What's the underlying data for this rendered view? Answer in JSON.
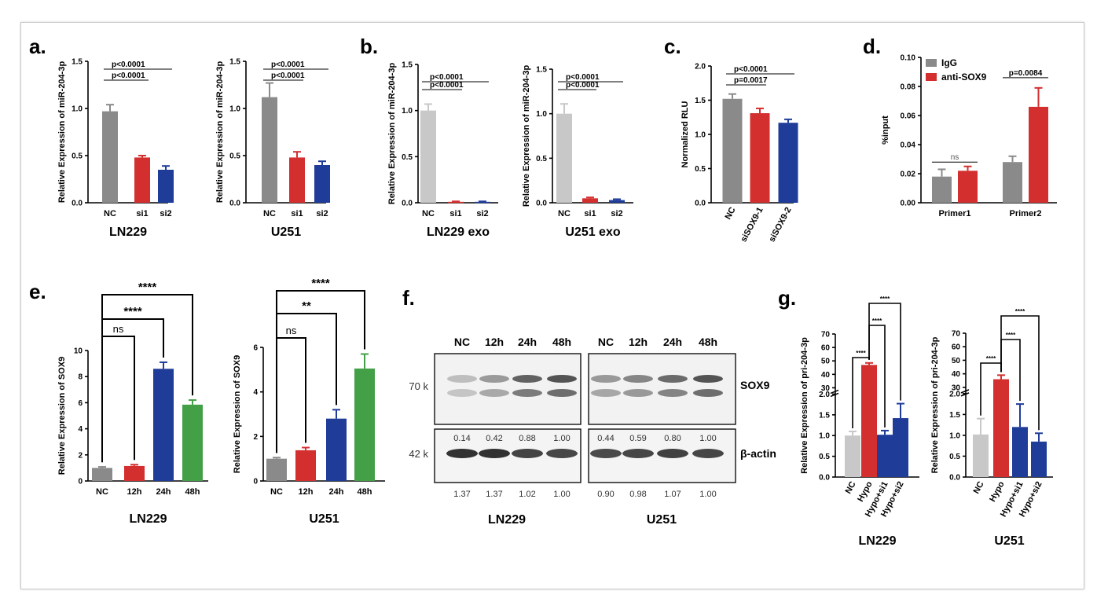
{
  "panel_labels": [
    "a.",
    "b.",
    "c.",
    "d.",
    "e.",
    "f.",
    "g."
  ],
  "colors": {
    "gray": "#8a8a8a",
    "lightgray": "#c8c8c8",
    "red": "#d32f2f",
    "blue": "#1f3c99",
    "green": "#43a047"
  },
  "chart_data": [
    {
      "id": "a1",
      "type": "bar",
      "title": "LN229",
      "ylabel": "Relative Expression of miR-204-3p",
      "ylim": [
        0,
        1.5
      ],
      "yticks": [
        0,
        0.5,
        1.0,
        1.5
      ],
      "categories": [
        "NC",
        "si1",
        "si2"
      ],
      "values": [
        0.97,
        0.48,
        0.35
      ],
      "errors": [
        0.07,
        0.02,
        0.04
      ],
      "colors": [
        "#8a8a8a",
        "#d32f2f",
        "#1f3c99"
      ],
      "sig": [
        {
          "a": 0,
          "b": 1,
          "label": "p<0.0001"
        },
        {
          "a": 0,
          "b": 2,
          "label": "p<0.0001"
        }
      ]
    },
    {
      "id": "a2",
      "type": "bar",
      "title": "U251",
      "ylabel": "Relative Expression of miR-204-3p",
      "ylim": [
        0,
        1.5
      ],
      "yticks": [
        0,
        0.5,
        1.0,
        1.5
      ],
      "categories": [
        "NC",
        "si1",
        "si2"
      ],
      "values": [
        1.12,
        0.48,
        0.4
      ],
      "errors": [
        0.15,
        0.06,
        0.04
      ],
      "colors": [
        "#8a8a8a",
        "#d32f2f",
        "#1f3c99"
      ],
      "sig": [
        {
          "a": 0,
          "b": 1,
          "label": "p<0.0001"
        },
        {
          "a": 0,
          "b": 2,
          "label": "p<0.0001"
        }
      ]
    },
    {
      "id": "b1",
      "type": "bar",
      "title": "LN229 exo",
      "ylabel": "Relative Expression of miR-204-3p",
      "ylim": [
        0,
        1.5
      ],
      "yticks": [
        0,
        0.5,
        1.0,
        1.5
      ],
      "categories": [
        "NC",
        "si1",
        "si2"
      ],
      "values": [
        1.0,
        0.01,
        0.01
      ],
      "errors": [
        0.07,
        0.005,
        0.005
      ],
      "colors": [
        "#c8c8c8",
        "#d32f2f",
        "#1f3c99"
      ],
      "sig": [
        {
          "a": 0,
          "b": 1,
          "label": "p<0.0001"
        },
        {
          "a": 0,
          "b": 2,
          "label": "p<0.0001"
        }
      ]
    },
    {
      "id": "b2",
      "type": "bar",
      "title": "U251 exo",
      "ylabel": "Relative Expression of miR-204-3p",
      "ylim": [
        0,
        1.5
      ],
      "yticks": [
        0,
        0.5,
        1.0,
        1.5
      ],
      "categories": [
        "NC",
        "si1",
        "si2"
      ],
      "values": [
        1.0,
        0.05,
        0.03
      ],
      "errors": [
        0.11,
        0.01,
        0.01
      ],
      "colors": [
        "#c8c8c8",
        "#d32f2f",
        "#1f3c99"
      ],
      "sig": [
        {
          "a": 0,
          "b": 1,
          "label": "p<0.0001"
        },
        {
          "a": 0,
          "b": 2,
          "label": "p<0.0001"
        }
      ]
    },
    {
      "id": "c",
      "type": "bar",
      "title": "",
      "ylabel": "Normalized RLU",
      "ylim": [
        0,
        2.0
      ],
      "yticks": [
        0.0,
        0.5,
        1.0,
        1.5,
        2.0
      ],
      "categories": [
        "NC",
        "siSOX9-1",
        "siSOX9-2"
      ],
      "values": [
        1.52,
        1.31,
        1.17
      ],
      "errors": [
        0.07,
        0.07,
        0.05
      ],
      "colors": [
        "#8a8a8a",
        "#d32f2f",
        "#1f3c99"
      ],
      "sig": [
        {
          "a": 0,
          "b": 1,
          "label": "p=0.0017"
        },
        {
          "a": 0,
          "b": 2,
          "label": "p<0.0001"
        }
      ]
    },
    {
      "id": "d",
      "type": "bar",
      "title": "",
      "ylabel": "%input",
      "ylim": [
        0,
        0.1
      ],
      "yticks": [
        0.0,
        0.02,
        0.04,
        0.06,
        0.08,
        0.1
      ],
      "categories": [
        "Primer1",
        "Primer2"
      ],
      "series": [
        {
          "name": "IgG",
          "values": [
            0.018,
            0.028
          ],
          "errors": [
            0.005,
            0.004
          ],
          "color": "#8a8a8a"
        },
        {
          "name": "anti-SOX9",
          "values": [
            0.022,
            0.066
          ],
          "errors": [
            0.003,
            0.013
          ],
          "color": "#d32f2f"
        }
      ],
      "sig": [
        {
          "group": 0,
          "label": "ns"
        },
        {
          "group": 1,
          "label": "p=0.0084"
        }
      ]
    },
    {
      "id": "e1",
      "type": "bar",
      "title": "LN229",
      "ylabel": "Relative Expression of SOX9",
      "ylim": [
        0,
        10
      ],
      "yticks": [
        0,
        2,
        4,
        6,
        8,
        10
      ],
      "categories": [
        "NC",
        "12h",
        "24h",
        "48h"
      ],
      "values": [
        1.0,
        1.15,
        8.6,
        5.85
      ],
      "errors": [
        0.08,
        0.1,
        0.5,
        0.35
      ],
      "colors": [
        "#8a8a8a",
        "#d32f2f",
        "#1f3c99",
        "#43a047"
      ],
      "sig": [
        {
          "a": 0,
          "b": 1,
          "label": "ns"
        },
        {
          "a": 0,
          "b": 2,
          "label": "****"
        },
        {
          "a": 0,
          "b": 3,
          "label": "****"
        }
      ]
    },
    {
      "id": "e2",
      "type": "bar",
      "title": "U251",
      "ylabel": "Relative Expression of SOX9",
      "ylim": [
        0,
        6
      ],
      "yticks": [
        0,
        2,
        4,
        6
      ],
      "categories": [
        "NC",
        "12h",
        "24h",
        "48h"
      ],
      "values": [
        1.0,
        1.38,
        2.8,
        5.05
      ],
      "errors": [
        0.05,
        0.12,
        0.4,
        0.65
      ],
      "colors": [
        "#8a8a8a",
        "#d32f2f",
        "#1f3c99",
        "#43a047"
      ],
      "sig": [
        {
          "a": 0,
          "b": 1,
          "label": "ns"
        },
        {
          "a": 0,
          "b": 2,
          "label": "**"
        },
        {
          "a": 0,
          "b": 3,
          "label": "****"
        }
      ]
    },
    {
      "id": "g1",
      "type": "bar",
      "title": "LN229",
      "ylabel": "Relative Expression of pri-204-3p",
      "yticks": [
        "0.0",
        "0.5",
        "1.0",
        "1.5",
        "2.0",
        "30",
        "40",
        "50",
        "60",
        "70"
      ],
      "categories": [
        "NC",
        "Hypo",
        "Hypo+si1",
        "Hypo+si2"
      ],
      "values": [
        1.0,
        47.0,
        1.02,
        1.42
      ],
      "errors": [
        0.1,
        1.5,
        0.1,
        0.35
      ],
      "colors": [
        "#c8c8c8",
        "#d32f2f",
        "#1f3c99",
        "#1f3c99"
      ],
      "sig": [
        {
          "a": 0,
          "b": 1,
          "label": "****"
        },
        {
          "a": 1,
          "b": 2,
          "label": "****"
        },
        {
          "a": 1,
          "b": 3,
          "label": "****"
        }
      ]
    },
    {
      "id": "g2",
      "type": "bar",
      "title": "U251",
      "ylabel": "Relative Expression of pri-204-3p",
      "yticks": [
        "0.0",
        "0.5",
        "1.0",
        "1.5",
        "2.0",
        "30",
        "40",
        "50",
        "60",
        "70"
      ],
      "categories": [
        "NC",
        "Hypo",
        "Hypo+si1",
        "Hypo+si2"
      ],
      "values": [
        1.02,
        36.0,
        1.2,
        0.85
      ],
      "errors": [
        0.38,
        3,
        0.55,
        0.2
      ],
      "colors": [
        "#c8c8c8",
        "#d32f2f",
        "#1f3c99",
        "#1f3c99"
      ],
      "sig": [
        {
          "a": 0,
          "b": 1,
          "label": "****"
        },
        {
          "a": 1,
          "b": 2,
          "label": "****"
        },
        {
          "a": 1,
          "b": 3,
          "label": "****"
        }
      ]
    }
  ],
  "blot": {
    "lanes": [
      "NC",
      "12h",
      "24h",
      "48h",
      "NC",
      "12h",
      "24h",
      "48h"
    ],
    "kda": [
      "70 k",
      "42 k"
    ],
    "proteins": [
      "SOX9",
      "β-actin"
    ],
    "sox9_quant": [
      "0.14",
      "0.42",
      "0.88",
      "1.00",
      "0.44",
      "0.59",
      "0.80",
      "1.00"
    ],
    "actin_quant": [
      "1.37",
      "1.37",
      "1.02",
      "1.00",
      "0.90",
      "0.98",
      "1.07",
      "1.00"
    ],
    "cell_lines": [
      "LN229",
      "U251"
    ]
  }
}
